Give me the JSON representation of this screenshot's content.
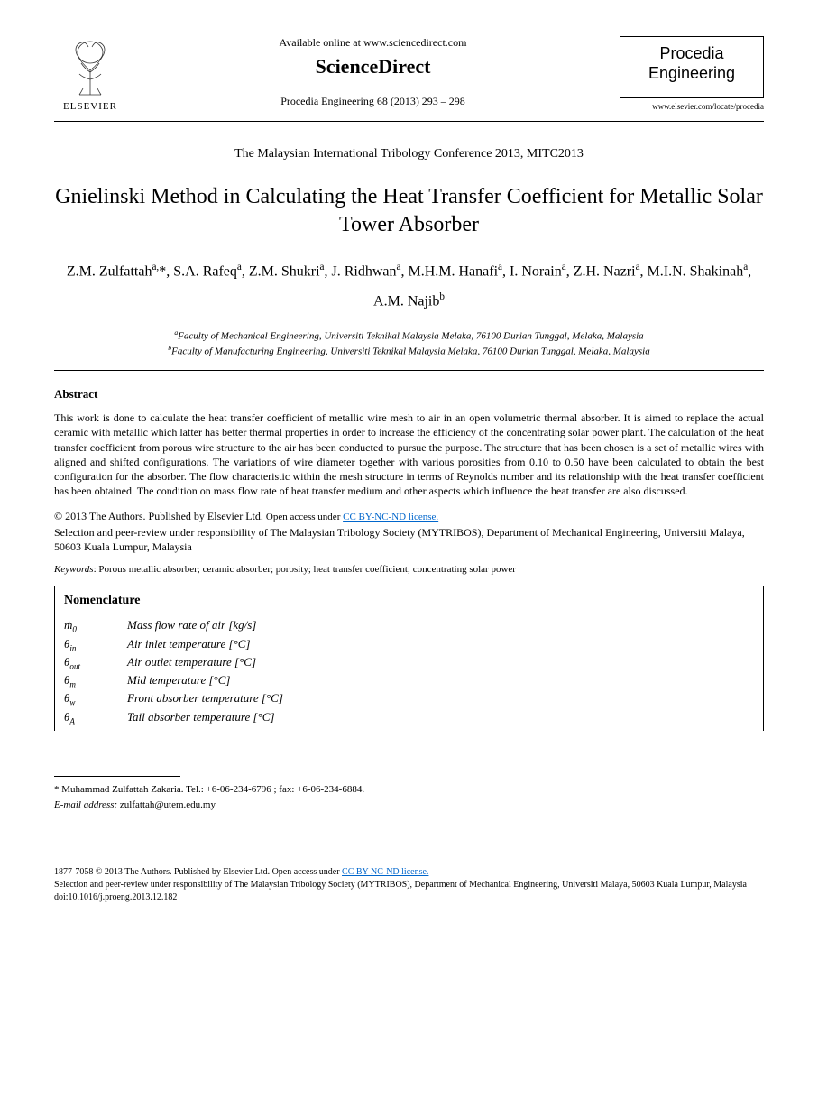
{
  "header": {
    "available_text": "Available online at www.sciencedirect.com",
    "sciencedirect": "ScienceDirect",
    "citation": "Procedia Engineering 68 (2013) 293 – 298",
    "elsevier_label": "ELSEVIER",
    "journal_name_line1": "Procedia",
    "journal_name_line2": "Engineering",
    "journal_url": "www.elsevier.com/locate/procedia"
  },
  "conference": "The Malaysian International Tribology Conference 2013, MITC2013",
  "title": "Gnielinski Method in Calculating the Heat Transfer Coefficient for Metallic Solar Tower Absorber",
  "authors_html": "Z.M. Zulfattah<sup>a,</sup>*, S.A. Rafeq<sup>a</sup>, Z.M. Shukri<sup>a</sup>, J. Ridhwan<sup>a</sup>, M.H.M. Hanafi<sup>a</sup>, I. Norain<sup>a</sup>, Z.H. Nazri<sup>a</sup>, M.I.N. Shakinah<sup>a</sup>, A.M. Najib<sup>b</sup>",
  "affiliations": {
    "a": "<sup>a</sup>Faculty of Mechanical Engineering, Universiti Teknikal Malaysia Melaka, 76100 Durian Tunggal, Melaka, Malaysia",
    "b": "<sup>b</sup>Faculty of Manufacturing Engineering, Universiti Teknikal Malaysia Melaka, 76100 Durian Tunggal, Melaka, Malaysia"
  },
  "abstract": {
    "heading": "Abstract",
    "text": "This work is done to calculate the heat transfer coefficient of metallic wire mesh to air in an open volumetric thermal absorber. It is aimed to replace the actual ceramic with metallic which latter has better thermal properties in order to increase the efficiency of the concentrating solar power plant. The calculation of the heat transfer coefficient from porous wire structure to the air has been conducted to pursue the purpose. The structure that has been chosen is a set of metallic wires with aligned and shifted configurations. The variations of wire diameter together with various porosities from 0.10 to 0.50 have been calculated to obtain the best configuration for the absorber. The flow characteristic within the mesh structure in terms of Reynolds number and its relationship with the heat transfer coefficient has been obtained. The condition on mass flow rate of heat transfer medium and other aspects which influence the heat transfer are also discussed."
  },
  "copyright": {
    "line1_prefix": "© 2013 The Authors. Published by Elsevier Ltd. ",
    "open_access": "Open access under ",
    "cc_link": "CC BY-NC-ND license.",
    "line2": "Selection and peer-review under responsibility of The Malaysian Tribology Society (MYTRIBOS), Department of Mechanical Engineering, Universiti Malaya, 50603 Kuala Lumpur, Malaysia"
  },
  "keywords": {
    "label": "Keywords",
    "text": ": Porous metallic absorber; ceramic absorber; porosity; heat transfer coefficient; concentrating solar power"
  },
  "nomenclature": {
    "title": "Nomenclature",
    "items": [
      {
        "sym": "ṁ<sub>0</sub>",
        "def": "Mass flow rate of air [kg/s]"
      },
      {
        "sym": "θ<sub>in</sub>",
        "def": "Air inlet temperature [°C]"
      },
      {
        "sym": "θ<sub>out</sub>",
        "def": "Air outlet temperature [°C]"
      },
      {
        "sym": "θ<sub>m</sub>",
        "def": "Mid temperature [°C]"
      },
      {
        "sym": "θ<sub>w</sub>",
        "def": "Front absorber temperature [°C]"
      },
      {
        "sym": "θ<sub>A</sub>",
        "def": "Tail absorber temperature [°C]"
      }
    ]
  },
  "footnote": {
    "corresponding": "* Muhammad Zulfattah Zakaria. Tel.: +6-06-234-6796 ;  fax: +6-06-234-6884.",
    "email_label": "E-mail address:",
    "email": " zulfattah@utem.edu.my"
  },
  "footer": {
    "issn": "1877-7058 © 2013 The Authors. Published by Elsevier Ltd. ",
    "open_access": "Open access under ",
    "cc_link": "CC BY-NC-ND license.",
    "selection": "Selection and peer-review under responsibility of The Malaysian Tribology Society (MYTRIBOS), Department of Mechanical Engineering, Universiti Malaya, 50603 Kuala Lumpur, Malaysia",
    "doi": "doi:10.1016/j.proeng.2013.12.182"
  },
  "colors": {
    "text": "#000000",
    "link": "#0066cc",
    "background": "#ffffff",
    "elsevier_orange": "#e87722"
  }
}
